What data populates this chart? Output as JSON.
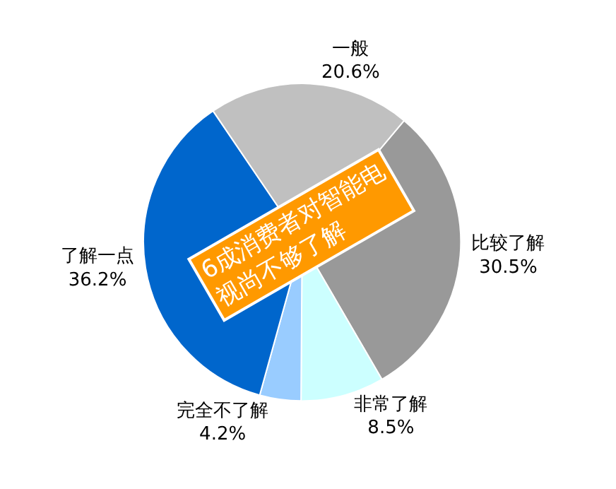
{
  "chart_data": {
    "type": "pie",
    "categories": [
      "比较了解",
      "非常了解",
      "完全不了解",
      "了解一点",
      "一般"
    ],
    "values": [
      30.5,
      8.5,
      4.2,
      36.2,
      20.6
    ],
    "value_labels": [
      "30.5%",
      "8.5%",
      "4.2%",
      "36.2%",
      "20.6%"
    ],
    "colors": [
      "#999999",
      "#ccffff",
      "#99ccff",
      "#0066cc",
      "#c0c0c0"
    ],
    "annotations": [
      "6成消费者对智能电\n视尚不够了解"
    ],
    "legend": false
  }
}
